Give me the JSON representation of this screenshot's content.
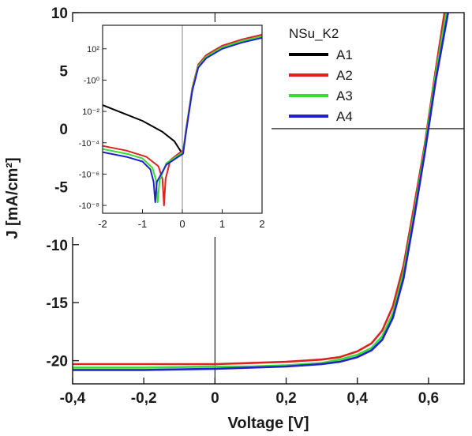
{
  "chart_data": [
    {
      "type": "line",
      "xlabel": "Voltage [V]",
      "ylabel": "J [mA/cm²]",
      "xlim": [
        -0.4,
        0.7
      ],
      "ylim": [
        -22,
        10
      ],
      "x_ticks": [
        -0.4,
        -0.2,
        0,
        0.2,
        0.4,
        0.6
      ],
      "x_tick_labels": [
        "-0,4",
        "-0,2",
        "0",
        "0,2",
        "0,4",
        "0,6"
      ],
      "y_ticks": [
        10,
        5,
        0,
        -5,
        -10,
        -15,
        -20
      ],
      "y_tick_labels": [
        "10",
        "5",
        "0",
        "-5",
        "-10",
        "-15",
        "-20"
      ],
      "zero_lines": true,
      "legend": {
        "title": "NSu_K2",
        "placement": "top-right",
        "entries": [
          {
            "name": "A1",
            "color": "#000000"
          },
          {
            "name": "A2",
            "color": "#dd2222"
          },
          {
            "name": "A3",
            "color": "#33dd33"
          },
          {
            "name": "A4",
            "color": "#2222cc"
          }
        ]
      },
      "series": [
        {
          "name": "A2",
          "color": "#dd2222",
          "x": [
            -0.4,
            -0.2,
            0,
            0.1,
            0.2,
            0.3,
            0.35,
            0.4,
            0.44,
            0.47,
            0.5,
            0.53,
            0.56,
            0.59,
            0.62,
            0.645
          ],
          "y": [
            -20.3,
            -20.3,
            -20.3,
            -20.2,
            -20.1,
            -19.9,
            -19.7,
            -19.2,
            -18.5,
            -17.4,
            -15.3,
            -11.8,
            -6.6,
            -1.3,
            5.0,
            10
          ]
        },
        {
          "name": "A3",
          "color": "#33dd33",
          "x": [
            -0.4,
            -0.2,
            0,
            0.1,
            0.2,
            0.3,
            0.35,
            0.4,
            0.44,
            0.47,
            0.5,
            0.53,
            0.56,
            0.59,
            0.62,
            0.65
          ],
          "y": [
            -20.6,
            -20.6,
            -20.5,
            -20.5,
            -20.4,
            -20.2,
            -19.9,
            -19.5,
            -18.9,
            -17.9,
            -15.9,
            -12.4,
            -7.2,
            -1.6,
            4.6,
            10
          ]
        },
        {
          "name": "A4",
          "color": "#2222cc",
          "x": [
            -0.4,
            -0.2,
            0,
            0.1,
            0.2,
            0.3,
            0.35,
            0.4,
            0.44,
            0.47,
            0.5,
            0.53,
            0.56,
            0.59,
            0.62,
            0.655
          ],
          "y": [
            -20.8,
            -20.8,
            -20.7,
            -20.6,
            -20.5,
            -20.3,
            -20.1,
            -19.7,
            -19.1,
            -18.2,
            -16.3,
            -12.9,
            -7.6,
            -2.0,
            4.1,
            10
          ]
        }
      ]
    },
    {
      "type": "line",
      "inset": true,
      "xlim": [
        -2,
        2
      ],
      "y_scale": "log",
      "ylim_log10": [
        -8.5,
        3.5
      ],
      "x_ticks": [
        -2,
        -1,
        0,
        1,
        2
      ],
      "x_tick_labels": [
        "-2",
        "-1",
        "0",
        "1",
        "2"
      ],
      "y_ticks_log10": [
        2,
        0,
        -2,
        -4,
        -6,
        -8
      ],
      "y_tick_labels": [
        "10²",
        "-10⁰",
        "10⁻²",
        "-10⁻⁴",
        "-10⁻⁶",
        "-10⁻⁸"
      ],
      "series": [
        {
          "name": "A1",
          "color": "#000000",
          "x": [
            -2,
            -1.5,
            -1,
            -0.5,
            -0.2,
            0
          ],
          "y_log10": [
            -1.6,
            -2.1,
            -2.6,
            -3.3,
            -3.9,
            -4.7
          ]
        },
        {
          "name": "A2",
          "color": "#dd2222",
          "x": [
            -2,
            -1.4,
            -0.9,
            -0.6,
            -0.5,
            -0.46,
            -0.42,
            -0.3,
            -0.1,
            0.02,
            0.1,
            0.25,
            0.4,
            0.6,
            1.0,
            1.5,
            2.0
          ],
          "y_log10": [
            -4.2,
            -4.5,
            -4.9,
            -5.5,
            -6.3,
            -8.0,
            -6.3,
            -5.1,
            -4.7,
            -4.5,
            -3.0,
            -0.5,
            1.0,
            1.6,
            2.2,
            2.6,
            2.9
          ]
        },
        {
          "name": "A3",
          "color": "#33dd33",
          "x": [
            -2,
            -1.4,
            -1.0,
            -0.75,
            -0.66,
            -0.62,
            -0.57,
            -0.4,
            -0.1,
            0.02,
            0.1,
            0.25,
            0.4,
            0.6,
            1.0,
            1.5,
            2.0
          ],
          "y_log10": [
            -4.4,
            -4.7,
            -5.0,
            -5.6,
            -6.4,
            -7.8,
            -6.4,
            -5.3,
            -4.8,
            -4.6,
            -3.1,
            -0.6,
            0.9,
            1.5,
            2.1,
            2.5,
            2.8
          ]
        },
        {
          "name": "A4",
          "color": "#2222cc",
          "x": [
            -2,
            -1.4,
            -1.0,
            -0.8,
            -0.72,
            -0.68,
            -0.64,
            -0.4,
            -0.1,
            0.02,
            0.1,
            0.25,
            0.4,
            0.6,
            1.0,
            1.5,
            2.0
          ],
          "y_log10": [
            -4.6,
            -4.9,
            -5.2,
            -5.7,
            -6.5,
            -7.8,
            -6.5,
            -5.4,
            -4.9,
            -4.7,
            -3.2,
            -0.7,
            0.8,
            1.4,
            2.0,
            2.4,
            2.7
          ]
        }
      ]
    }
  ]
}
